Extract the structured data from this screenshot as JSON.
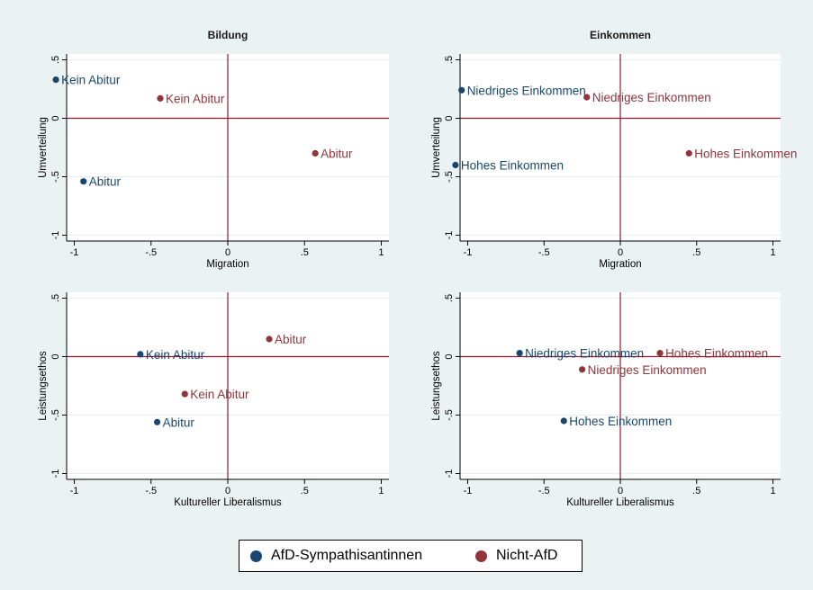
{
  "colors": {
    "afd": "#1a476f",
    "nonafd": "#90353b",
    "axisline": "#8b1a2e",
    "plot_bg": "#ffffff",
    "page_bg": "#eaf2f3"
  },
  "legend": {
    "afd_label": "AfD-Sympathisantinnen",
    "nonafd_label": "Nicht-AfD"
  },
  "chart_data": [
    {
      "type": "scatter",
      "title": "Bildung",
      "xlabel": "Migration",
      "ylabel": "Umverteilung",
      "xlim": [
        -1.05,
        1.05
      ],
      "ylim": [
        -1.05,
        0.55
      ],
      "xticks": [
        -1,
        -0.5,
        0,
        0.5,
        1
      ],
      "xtick_labels": [
        "-1",
        "-.5",
        "0",
        ".5",
        "1"
      ],
      "yticks": [
        -1,
        -0.5,
        0,
        0.5
      ],
      "ytick_labels": [
        "-1",
        "-.5",
        "0",
        ".5"
      ],
      "points": [
        {
          "group": "afd",
          "label": "Kein Abitur",
          "x": -1.12,
          "y": 0.33
        },
        {
          "group": "afd",
          "label": "Abitur",
          "x": -0.94,
          "y": -0.54
        },
        {
          "group": "nonafd",
          "label": "Kein Abitur",
          "x": -0.44,
          "y": 0.17
        },
        {
          "group": "nonafd",
          "label": "Abitur",
          "x": 0.57,
          "y": -0.3
        }
      ]
    },
    {
      "type": "scatter",
      "title": "Einkommen",
      "xlabel": "Migration",
      "ylabel": "Umverteilung",
      "xlim": [
        -1.05,
        1.05
      ],
      "ylim": [
        -1.05,
        0.55
      ],
      "xticks": [
        -1,
        -0.5,
        0,
        0.5,
        1
      ],
      "xtick_labels": [
        "-1",
        "-.5",
        "0",
        ".5",
        "1"
      ],
      "yticks": [
        -1,
        -0.5,
        0,
        0.5
      ],
      "ytick_labels": [
        "-1",
        "-.5",
        "0",
        ".5"
      ],
      "points": [
        {
          "group": "afd",
          "label": "Niedriges Einkommen",
          "x": -1.04,
          "y": 0.24
        },
        {
          "group": "afd",
          "label": "Hohes Einkommen",
          "x": -1.08,
          "y": -0.4
        },
        {
          "group": "nonafd",
          "label": "Niedriges Einkommen",
          "x": -0.22,
          "y": 0.18
        },
        {
          "group": "nonafd",
          "label": "Hohes Einkommen",
          "x": 0.45,
          "y": -0.3
        }
      ]
    },
    {
      "type": "scatter",
      "title": "",
      "xlabel": "Kultureller Liberalismus",
      "ylabel": "Leistungsethos",
      "xlim": [
        -1.05,
        1.05
      ],
      "ylim": [
        -1.05,
        0.55
      ],
      "xticks": [
        -1,
        -0.5,
        0,
        0.5,
        1
      ],
      "xtick_labels": [
        "-1",
        "-.5",
        "0",
        ".5",
        "1"
      ],
      "yticks": [
        -1,
        -0.5,
        0,
        0.5
      ],
      "ytick_labels": [
        "-1",
        "-.5",
        "0",
        ".5"
      ],
      "points": [
        {
          "group": "afd",
          "label": "Kein Abitur",
          "x": -0.57,
          "y": 0.02
        },
        {
          "group": "afd",
          "label": "Abitur",
          "x": -0.46,
          "y": -0.56
        },
        {
          "group": "nonafd",
          "label": "Abitur",
          "x": 0.27,
          "y": 0.15
        },
        {
          "group": "nonafd",
          "label": "Kein Abitur",
          "x": -0.28,
          "y": -0.32
        }
      ]
    },
    {
      "type": "scatter",
      "title": "",
      "xlabel": "Kultureller Liberalismus",
      "ylabel": "Leistungsethos",
      "xlim": [
        -1.05,
        1.05
      ],
      "ylim": [
        -1.05,
        0.55
      ],
      "xticks": [
        -1,
        -0.5,
        0,
        0.5,
        1
      ],
      "xtick_labels": [
        "-1",
        "-.5",
        "0",
        ".5",
        "1"
      ],
      "yticks": [
        -1,
        -0.5,
        0,
        0.5
      ],
      "ytick_labels": [
        "-1",
        "-.5",
        "0",
        ".5"
      ],
      "points": [
        {
          "group": "afd",
          "label": "Niedriges Einkommen",
          "x": -0.66,
          "y": 0.03
        },
        {
          "group": "afd",
          "label": "Hohes Einkommen",
          "x": -0.37,
          "y": -0.55
        },
        {
          "group": "nonafd",
          "label": "Hohes Einkommen",
          "x": 0.26,
          "y": 0.03
        },
        {
          "group": "nonafd",
          "label": "Niedriges Einkommen",
          "x": -0.25,
          "y": -0.11
        }
      ]
    }
  ]
}
